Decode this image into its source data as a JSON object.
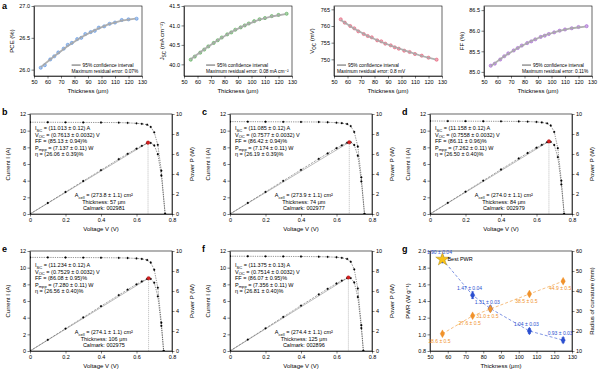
{
  "chart_data": [
    {
      "type": "scatter",
      "title": "a",
      "xlabel": "Thickness (μm)",
      "ylabel": "PCE (%)",
      "x": [
        55,
        58,
        62,
        65,
        68,
        72,
        75,
        78,
        82,
        85,
        88,
        92,
        95,
        98,
        102,
        106,
        110,
        115,
        120,
        126
      ],
      "xlim": [
        50,
        130
      ],
      "xticks": [
        50,
        60,
        70,
        80,
        90,
        100,
        110,
        120,
        130
      ],
      "ylim": [
        25.9,
        27.0
      ],
      "yticks": [
        {
          "value": 26,
          "label": "26.0"
        },
        26.5,
        {
          "value": 27,
          "label": "27.0"
        }
      ],
      "legend": "lower right",
      "annotations": [
        "Maximum residual error: 0.07%"
      ],
      "series": [
        {
          "color": "#3d7fd9",
          "marker": "circle",
          "values": [
            26.03,
            26.07,
            26.16,
            26.21,
            26.27,
            26.33,
            26.39,
            26.42,
            26.48,
            26.5,
            26.56,
            26.59,
            26.61,
            26.66,
            26.68,
            26.72,
            26.74,
            26.78,
            26.79,
            26.8
          ]
        },
        {
          "name": "95% confidence interval",
          "type": "line",
          "color": "#a6a6a6",
          "x": [
            55,
            65,
            75,
            85,
            95,
            105,
            115,
            125
          ],
          "values": [
            26.04,
            26.21,
            26.37,
            26.51,
            26.62,
            26.71,
            26.77,
            26.8
          ]
        }
      ]
    },
    {
      "type": "scatter",
      "xlabel": "Thickness (μm)",
      "ylabel": "JSC (mA cm⁻²)",
      "x": [
        55,
        58,
        62,
        65,
        68,
        72,
        75,
        78,
        82,
        85,
        88,
        92,
        95,
        98,
        102,
        106,
        110,
        115,
        120,
        126
      ],
      "xlim": [
        50,
        130
      ],
      "xticks": [
        50,
        60,
        70,
        80,
        90,
        100,
        110,
        120,
        130
      ],
      "ylim": [
        39.7,
        41.5
      ],
      "yticks": [
        {
          "value": 40,
          "label": "40.0"
        },
        40.5,
        {
          "value": 41,
          "label": "41.0"
        },
        41.5
      ],
      "legend": "lower right",
      "annotations": [
        "Maximum residual error: 0.08 mA cm⁻²"
      ],
      "series": [
        {
          "color": "#3a9a3a",
          "marker": "circle",
          "values": [
            40.12,
            40.2,
            40.3,
            40.38,
            40.46,
            40.55,
            40.62,
            40.69,
            40.77,
            40.82,
            40.89,
            40.95,
            41.0,
            41.05,
            41.11,
            41.16,
            41.19,
            41.24,
            41.27,
            41.3
          ]
        },
        {
          "name": "95% confidence interval",
          "type": "line",
          "color": "#a6a6a6",
          "x": [
            55,
            65,
            75,
            85,
            95,
            105,
            115,
            125
          ],
          "values": [
            40.13,
            40.39,
            40.62,
            40.83,
            41.0,
            41.14,
            41.23,
            41.29
          ]
        }
      ]
    },
    {
      "type": "scatter",
      "xlabel": "Thickness (μm)",
      "ylabel": "VOC (mV)",
      "x": [
        55,
        58,
        62,
        65,
        68,
        72,
        75,
        78,
        82,
        85,
        88,
        92,
        95,
        98,
        102,
        106,
        110,
        115,
        120,
        126
      ],
      "xlim": [
        50,
        130
      ],
      "xticks": [
        50,
        60,
        70,
        80,
        90,
        100,
        110,
        120,
        130
      ],
      "ylim": [
        745,
        766
      ],
      "yticks": [
        750,
        755,
        760,
        765
      ],
      "legend": "lower left",
      "annotations": [
        "Maximum residual error: 0.8 mV"
      ],
      "series": [
        {
          "color": "#e0405e",
          "marker": "circle",
          "values": [
            762.0,
            761.0,
            760.0,
            759.3,
            758.4,
            757.6,
            757.0,
            756.6,
            755.7,
            755.4,
            754.7,
            754.2,
            753.6,
            753.2,
            752.6,
            752.2,
            751.6,
            751.1,
            750.5,
            749.9
          ]
        },
        {
          "name": "95% confidence interval",
          "type": "line",
          "color": "#a6a6a6",
          "x": [
            55,
            65,
            75,
            85,
            95,
            105,
            115,
            125
          ],
          "values": [
            761.8,
            759.2,
            757.0,
            755.2,
            753.7,
            752.3,
            751.0,
            750.0
          ]
        }
      ]
    },
    {
      "type": "scatter",
      "xlabel": "Thickness (μm)",
      "ylabel": "FF (%)",
      "x": [
        55,
        58,
        62,
        65,
        68,
        72,
        75,
        78,
        82,
        85,
        88,
        92,
        95,
        98,
        102,
        106,
        110,
        115,
        120,
        126
      ],
      "xlim": [
        50,
        130
      ],
      "xticks": [
        50,
        60,
        70,
        80,
        90,
        100,
        110,
        120,
        130
      ],
      "ylim": [
        84.9,
        86.6
      ],
      "yticks": [
        {
          "value": 85,
          "label": "85.0"
        },
        85.5,
        {
          "value": 86,
          "label": "86.0"
        },
        86.5
      ],
      "legend": "lower right",
      "annotations": [
        "Maximum residual error: 0.11%"
      ],
      "series": [
        {
          "color": "#9247c9",
          "marker": "circle",
          "values": [
            85.15,
            85.2,
            85.3,
            85.38,
            85.45,
            85.52,
            85.58,
            85.64,
            85.7,
            85.74,
            85.79,
            85.85,
            85.88,
            85.92,
            85.96,
            86.0,
            86.03,
            86.06,
            86.09,
            86.11
          ]
        },
        {
          "name": "95% confidence interval",
          "type": "line",
          "color": "#a6a6a6",
          "x": [
            55,
            65,
            75,
            85,
            95,
            105,
            115,
            125
          ],
          "values": [
            85.14,
            85.38,
            85.58,
            85.75,
            85.89,
            85.99,
            86.06,
            86.1
          ]
        }
      ]
    },
    {
      "type": "line",
      "title": "b",
      "xlabel": "Voltage V (V)",
      "ylabel": "Current I (A)",
      "y2label": "Power P (W)",
      "x": [
        0,
        0.1,
        0.2,
        0.3,
        0.4,
        0.5,
        0.55,
        0.6,
        0.63,
        0.66,
        0.68,
        0.7,
        0.72,
        0.74,
        0.7613
      ],
      "xlim": [
        0,
        0.8
      ],
      "xticks": [
        0,
        0.2,
        0.4,
        0.6,
        0.8
      ],
      "ylim": [
        0,
        12
      ],
      "yticks": [
        0,
        2,
        4,
        6,
        8,
        10,
        12
      ],
      "y2lim": [
        0,
        10
      ],
      "y2ticks": [
        0,
        2,
        4,
        6,
        8,
        10
      ],
      "annotations": [
        "ISC = (11.013 ± 0.12) A",
        "VOC = (0.7613 ± 0.0032) V",
        "FF = (85.13 ± 0.94)%",
        "Pmpp = (7.137 ± 0.11) W",
        "η = (26.06 ± 0.39)%",
        "Acell = (273.8 ± 1.1) cm²",
        "Thickness: 57 μm",
        "Calmark: 002981"
      ],
      "mpp": {
        "x": 0.665,
        "y": 7.137
      },
      "series": [
        {
          "color": "#000000",
          "marker": "circle",
          "line_style": "dotted",
          "values": [
            11.013,
            11.01,
            11.0,
            10.99,
            10.98,
            10.97,
            10.94,
            10.88,
            10.82,
            10.72,
            10.45,
            9.8,
            8.3,
            5.2,
            0
          ]
        },
        {
          "color": "#000000",
          "marker": "circle",
          "line_style": "dotted",
          "axis": "y2",
          "values": [
            0,
            1.1,
            2.2,
            3.3,
            4.39,
            5.49,
            6.02,
            6.53,
            6.82,
            7.08,
            7.11,
            6.86,
            5.98,
            3.85,
            0
          ]
        }
      ]
    },
    {
      "type": "line",
      "title": "c",
      "xlabel": "Voltage V (V)",
      "ylabel": "Current I (A)",
      "y2label": "Power P (W)",
      "x": [
        0,
        0.1,
        0.2,
        0.3,
        0.4,
        0.5,
        0.55,
        0.6,
        0.63,
        0.66,
        0.68,
        0.7,
        0.72,
        0.74,
        0.7577
      ],
      "xlim": [
        0,
        0.8
      ],
      "xticks": [
        0,
        0.2,
        0.4,
        0.6,
        0.8
      ],
      "ylim": [
        0,
        12
      ],
      "yticks": [
        0,
        2,
        4,
        6,
        8,
        10,
        12
      ],
      "y2lim": [
        0,
        10
      ],
      "y2ticks": [
        0,
        2,
        4,
        6,
        8,
        10
      ],
      "annotations": [
        "ISC = (11.085 ± 0.12) A",
        "VOC = (0.7577 ± 0.0032) V",
        "FF = (86.42 ± 0.94)%",
        "Pmpp = (7.174 ± 0.11) W",
        "η = (26.19 ± 0.39)%",
        "Acell = (273.9 ± 1.1) cm²",
        "Thickness: 74 μm",
        "Calmark: 002977"
      ],
      "mpp": {
        "x": 0.672,
        "y": 7.174
      },
      "series": [
        {
          "color": "#000000",
          "marker": "circle",
          "line_style": "dotted",
          "values": [
            11.085,
            11.08,
            11.07,
            11.06,
            11.05,
            11.04,
            11.01,
            10.96,
            10.9,
            10.8,
            10.55,
            9.85,
            8.1,
            4.4,
            0
          ]
        },
        {
          "color": "#000000",
          "marker": "circle",
          "line_style": "dotted",
          "axis": "y2",
          "values": [
            0,
            1.11,
            2.21,
            3.32,
            4.42,
            5.52,
            6.06,
            6.58,
            6.87,
            7.13,
            7.17,
            6.9,
            5.83,
            3.26,
            0
          ]
        }
      ]
    },
    {
      "type": "line",
      "title": "d",
      "xlabel": "Voltage V (V)",
      "ylabel": "Current I (A)",
      "y2label": "Power P (W)",
      "x": [
        0,
        0.1,
        0.2,
        0.3,
        0.4,
        0.5,
        0.55,
        0.6,
        0.63,
        0.66,
        0.68,
        0.7,
        0.72,
        0.74,
        0.7558
      ],
      "xlim": [
        0,
        0.8
      ],
      "xticks": [
        0,
        0.2,
        0.4,
        0.6,
        0.8
      ],
      "ylim": [
        0,
        12
      ],
      "yticks": [
        0,
        2,
        4,
        6,
        8,
        10,
        12
      ],
      "y2lim": [
        0,
        10
      ],
      "y2ticks": [
        0,
        2,
        4,
        6,
        8,
        10
      ],
      "annotations": [
        "ISC = (11.158 ± 0.12) A",
        "VOC = (0.7558 ± 0.0032) V",
        "FF = (86.11 ± 0.96)%",
        "Pmpp = (7.262 ± 0.11) W",
        "η = (26.50 ± 0.40)%",
        "Acell = (274.0 ± 1.1) cm²",
        "Thickness: 84 μm",
        "Calmark: 002979"
      ],
      "mpp": {
        "x": 0.67,
        "y": 7.262
      },
      "series": [
        {
          "color": "#000000",
          "marker": "circle",
          "line_style": "dotted",
          "values": [
            11.158,
            11.15,
            11.14,
            11.13,
            11.12,
            11.11,
            11.09,
            11.05,
            10.99,
            10.88,
            10.62,
            9.85,
            7.9,
            4.0,
            0
          ]
        },
        {
          "color": "#000000",
          "marker": "circle",
          "line_style": "dotted",
          "axis": "y2",
          "values": [
            0,
            1.12,
            2.23,
            3.34,
            4.45,
            5.56,
            6.1,
            6.63,
            6.92,
            7.18,
            7.22,
            6.9,
            5.69,
            2.96,
            0
          ]
        }
      ]
    },
    {
      "type": "line",
      "title": "e",
      "xlabel": "Voltage V (V)",
      "ylabel": "Current I (A)",
      "y2label": "Power P (W)",
      "x": [
        0,
        0.1,
        0.2,
        0.3,
        0.4,
        0.5,
        0.55,
        0.6,
        0.63,
        0.66,
        0.68,
        0.7,
        0.72,
        0.74,
        0.7529
      ],
      "xlim": [
        0,
        0.8
      ],
      "xticks": [
        0,
        0.2,
        0.4,
        0.6,
        0.8
      ],
      "ylim": [
        0,
        12
      ],
      "yticks": [
        0,
        2,
        4,
        6,
        8,
        10,
        12
      ],
      "y2lim": [
        0,
        10
      ],
      "y2ticks": [
        0,
        2,
        4,
        6,
        8,
        10
      ],
      "annotations": [
        "ISC = (11.234 ± 0.12) A",
        "VOC = (0.7529 ± 0.0032) V",
        "FF = (86.08 ± 0.95)%",
        "Pmpp = (7.280 ± 0.11) W",
        "η = (26.56 ± 0.40)%",
        "Acell = (274.1 ± 1.1) cm²",
        "Thickness: 106 μm",
        "Calmark: 002975"
      ],
      "mpp": {
        "x": 0.668,
        "y": 7.28
      },
      "series": [
        {
          "color": "#000000",
          "marker": "circle",
          "line_style": "dotted",
          "values": [
            11.234,
            11.23,
            11.22,
            11.21,
            11.2,
            11.18,
            11.16,
            11.11,
            11.05,
            10.92,
            10.62,
            9.75,
            7.6,
            3.4,
            0
          ]
        },
        {
          "color": "#000000",
          "marker": "circle",
          "line_style": "dotted",
          "axis": "y2",
          "values": [
            0,
            1.12,
            2.24,
            3.36,
            4.48,
            5.59,
            6.14,
            6.67,
            6.96,
            7.21,
            7.22,
            6.83,
            5.47,
            2.52,
            0
          ]
        }
      ]
    },
    {
      "type": "line",
      "title": "f",
      "xlabel": "Voltage V (V)",
      "ylabel": "Current I (A)",
      "y2label": "Power P (W)",
      "x": [
        0,
        0.1,
        0.2,
        0.3,
        0.4,
        0.5,
        0.55,
        0.6,
        0.63,
        0.66,
        0.68,
        0.7,
        0.72,
        0.74,
        0.7514
      ],
      "xlim": [
        0,
        0.8
      ],
      "xticks": [
        0,
        0.2,
        0.4,
        0.6,
        0.8
      ],
      "ylim": [
        0,
        12
      ],
      "yticks": [
        0,
        2,
        4,
        6,
        8,
        10,
        12
      ],
      "y2lim": [
        0,
        10
      ],
      "y2ticks": [
        0,
        2,
        4,
        6,
        8,
        10
      ],
      "annotations": [
        "ISC = (11.375 ± 0.13) A",
        "VOC = (0.7514 ± 0.0032) V",
        "FF = (86.07 ± 0.95)%",
        "Pmpp = (7.356 ± 0.11) W",
        "η = (26.81 ± 0.40)%",
        "Acell = (274.4 ± 1.1) cm²",
        "Thickness: 125 μm",
        "Calmark: 002896"
      ],
      "mpp": {
        "x": 0.667,
        "y": 7.356
      },
      "series": [
        {
          "color": "#000000",
          "marker": "circle",
          "line_style": "dotted",
          "values": [
            11.375,
            11.37,
            11.36,
            11.35,
            11.34,
            11.32,
            11.3,
            11.25,
            11.18,
            11.05,
            10.72,
            9.8,
            7.5,
            3.1,
            0
          ]
        },
        {
          "color": "#000000",
          "marker": "circle",
          "line_style": "dotted",
          "axis": "y2",
          "values": [
            0,
            1.14,
            2.27,
            3.41,
            4.54,
            5.66,
            6.22,
            6.75,
            7.04,
            7.29,
            7.29,
            6.86,
            5.4,
            2.29,
            0
          ]
        }
      ]
    },
    {
      "type": "scatter",
      "title": "g",
      "xlabel": "Thickness (μm)",
      "ylabel": "PWR (W g⁻¹)",
      "y2label": "Radius of curvature (mm)",
      "x": [
        57,
        74,
        84,
        106,
        125
      ],
      "xlim": [
        50,
        130
      ],
      "xticks": [
        50,
        60,
        70,
        80,
        90,
        100,
        110,
        120,
        130
      ],
      "ylim": [
        0.8,
        2.0
      ],
      "yticks": [
        0.8,
        {
          "value": 1,
          "label": "1.0"
        },
        1.2,
        1.4,
        1.6,
        1.8,
        {
          "value": 2,
          "label": "2.0"
        }
      ],
      "y2lim": [
        10,
        60
      ],
      "y2ticks": [
        10,
        20,
        30,
        40,
        50,
        60
      ],
      "data_labels": true,
      "annotations": [
        {
          "text": "Best PWR",
          "x": 57,
          "y": 1.9
        }
      ],
      "series": [
        {
          "color": "#2b4fd0",
          "marker": "diamond",
          "line_style": "dashed",
          "values": [
            1.9,
            1.47,
            1.31,
            1.04,
            0.93
          ],
          "errors": [
            0.04,
            0.04,
            0.03,
            0.03,
            0.03
          ],
          "value_labels": [
            "1.90 ± 0.04",
            "1.47 ± 0.04",
            "1.31 ± 0.03",
            "1.04 ± 0.03",
            "0.93 ± 0.03"
          ]
        },
        {
          "color": "#f0922b",
          "marker": "diamond",
          "line_style": "dashed",
          "axis": "y2",
          "values": [
            18.6,
            27.6,
            31.0,
            38.5,
            44.9
          ],
          "errors": [
            0.5,
            0.5,
            0.5,
            0.5,
            0.5
          ],
          "value_labels": [
            "18.6 ± 0.5",
            "27.6 ± 0.5",
            "31.0 ± 0.5",
            "38.5 ± 0.5",
            "44.9 ± 0.5"
          ]
        }
      ]
    }
  ]
}
